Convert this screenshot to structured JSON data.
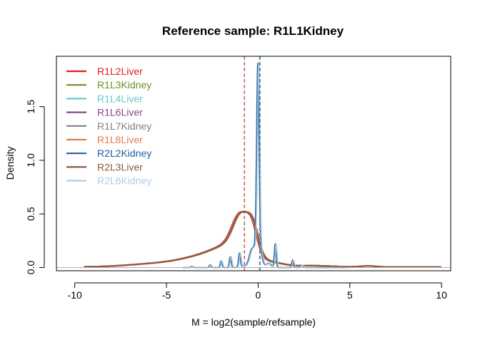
{
  "chart_data": {
    "type": "line",
    "title": "Reference sample: R1L1Kidney",
    "xlabel": "M = log2(sample/refsample)",
    "ylabel": "Density",
    "xlim": [
      -11,
      10.5
    ],
    "ylim": [
      -0.03,
      1.97
    ],
    "xticks": [
      -10,
      -5,
      0,
      5,
      10
    ],
    "xtick_labels": [
      "-10",
      "-5",
      "0",
      "5",
      "10"
    ],
    "yticks": [
      0.0,
      0.5,
      1.0,
      1.5
    ],
    "ytick_labels": [
      "0.0",
      "0.5",
      "1.0",
      "1.5"
    ],
    "legend_position": "top-left",
    "grid": false,
    "reference_lines": [
      {
        "x": -0.75,
        "color": "#c0392b",
        "style": "dashed"
      },
      {
        "x": 0.08,
        "color": "#5a6b7c",
        "style": "dashed"
      },
      {
        "x": 0.12,
        "color": "#6fb7c9",
        "style": "dashed"
      }
    ],
    "series": [
      {
        "name": "R1L2Liver",
        "color": "#e31a1c",
        "kind": "liver",
        "shift": -0.05
      },
      {
        "name": "R1L3Kidney",
        "color": "#6b8e23",
        "kind": "kidney",
        "shift": 0.0
      },
      {
        "name": "R1L4Liver",
        "color": "#66c8cc",
        "kind": "liver",
        "shift": 0.0
      },
      {
        "name": "R1L6Liver",
        "color": "#8e4585",
        "kind": "liver",
        "shift": 0.03
      },
      {
        "name": "R1L7Kidney",
        "color": "#808080",
        "kind": "kidney",
        "shift": 0.02
      },
      {
        "name": "R1L8Liver",
        "color": "#e8784a",
        "kind": "liver",
        "shift": 0.05
      },
      {
        "name": "R2L2Kidney",
        "color": "#1f5fa0",
        "kind": "kidney",
        "shift": -0.02
      },
      {
        "name": "R2L3Liver",
        "color": "#8b5a3c",
        "kind": "liver",
        "shift": 0.02
      },
      {
        "name": "R2L6Kidney",
        "color": "#aecde8",
        "kind": "kidney",
        "shift": 0.03
      }
    ]
  }
}
